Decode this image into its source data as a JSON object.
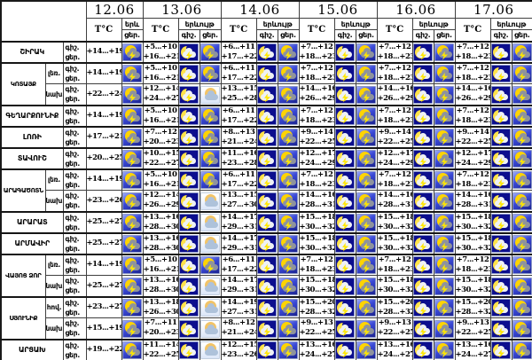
{
  "labels": {
    "temp": "T°C",
    "phenomenon": "երևույթ",
    "phenomenon_short": "երև",
    "night": "գիշ.",
    "day": "ցեր."
  },
  "days": [
    {
      "date": "12.06"
    },
    {
      "date": "13.06"
    },
    {
      "date": "14.06"
    },
    {
      "date": "15.06"
    },
    {
      "date": "16.06"
    },
    {
      "date": "17.06"
    }
  ],
  "icon_legend": {
    "sd": "sun-cloud-lightning (thunderstorm, day)",
    "sn": "moon-cloud-lightning (thunderstorm, night)",
    "cs": "sun-behind-cloud (partly cloudy, day)"
  },
  "colors": {
    "grid": "#3f3f3f",
    "storm_day_bg": "#2e3cc4",
    "storm_night_bg": "#0c0e8e",
    "partly_cloudy_bg": "#e8effa",
    "sun": "#ffd400",
    "moon": "#ffe24a",
    "bolt": "#ffe700",
    "cloud_gray": "#8e939d",
    "cloud_white": "#eef1f6",
    "cloud_blue": "#aec2da"
  },
  "rows": [
    {
      "region": "ՇԻՐԱԿ",
      "sub": null,
      "span": 1,
      "days": [
        {
          "night": "",
          "day": "+14...+19",
          "icons": [
            "sd"
          ]
        },
        {
          "night": "+5...+10",
          "day": "+16...+21",
          "icons": [
            "sn",
            "sd"
          ]
        },
        {
          "night": "+6...+11",
          "day": "+17...+22",
          "icons": [
            "sn",
            "sd"
          ]
        },
        {
          "night": "+7...+12",
          "day": "+18...+23",
          "icons": [
            "sn",
            "sd"
          ]
        },
        {
          "night": "+7...+12",
          "day": "+18...+23",
          "icons": [
            "sn",
            "sd"
          ]
        },
        {
          "night": "+7...+12",
          "day": "+18...+23",
          "icons": [
            "sn",
            "sd"
          ]
        }
      ]
    },
    {
      "region": "ԿՈՏԱՅՔ",
      "sub": "լեռ.",
      "span": 2,
      "days": [
        {
          "night": "",
          "day": "+14...+19",
          "icons": [
            "sd"
          ]
        },
        {
          "night": "+5...+10",
          "day": "+16...+21",
          "icons": [
            "sn",
            "sd"
          ]
        },
        {
          "night": "+6...+11",
          "day": "+17...+22",
          "icons": [
            "sn",
            "sd"
          ]
        },
        {
          "night": "+7...+12",
          "day": "+18...+23",
          "icons": [
            "sn",
            "sd"
          ]
        },
        {
          "night": "+7...+12",
          "day": "+18...+23",
          "icons": [
            "sn",
            "sd"
          ]
        },
        {
          "night": "+7...+12",
          "day": "+18...+23",
          "icons": [
            "sn",
            "sd"
          ]
        }
      ]
    },
    {
      "region": null,
      "sub": "նախ.",
      "span": 0,
      "days": [
        {
          "night": "",
          "day": "+22...+24",
          "icons": [
            "sd"
          ]
        },
        {
          "night": "+12...+14",
          "day": "+24...+27",
          "icons": [
            "sn",
            "cs"
          ]
        },
        {
          "night": "+13...+15",
          "day": "+25...+28",
          "icons": [
            "sn",
            "sd"
          ]
        },
        {
          "night": "+14...+16",
          "day": "+26...+29",
          "icons": [
            "sn",
            "sd"
          ]
        },
        {
          "night": "+14...+16",
          "day": "+26...+29",
          "icons": [
            "sn",
            "sd"
          ]
        },
        {
          "night": "+14...+16",
          "day": "+26...+29",
          "icons": [
            "sn",
            "sd"
          ]
        }
      ]
    },
    {
      "region": "ԳԵՂԱՐՔՈՒՆԻՔ",
      "sub": null,
      "span": 1,
      "days": [
        {
          "night": "",
          "day": "+14...+19",
          "icons": [
            "sd"
          ]
        },
        {
          "night": "+5...+10",
          "day": "+16...+21",
          "icons": [
            "sn",
            "sd"
          ]
        },
        {
          "night": "+6...+11",
          "day": "+17...+22",
          "icons": [
            "sn",
            "sd"
          ]
        },
        {
          "night": "+7...+12",
          "day": "+18...+23",
          "icons": [
            "sn",
            "sd"
          ]
        },
        {
          "night": "+7...+12",
          "day": "+18...+23",
          "icons": [
            "sn",
            "sd"
          ]
        },
        {
          "night": "+7...+12",
          "day": "+18...+23",
          "icons": [
            "sn",
            "sd"
          ]
        }
      ]
    },
    {
      "region": "ԼՈՌԻ",
      "sub": null,
      "span": 1,
      "days": [
        {
          "night": "",
          "day": "+17...+21",
          "icons": [
            "sd"
          ]
        },
        {
          "night": "+7...+12",
          "day": "+20...+23",
          "icons": [
            "sn",
            "sd"
          ]
        },
        {
          "night": "+8...+13",
          "day": "+21...+24",
          "icons": [
            "sn",
            "sd"
          ]
        },
        {
          "night": "+9...+14",
          "day": "+22...+25",
          "icons": [
            "sn",
            "sd"
          ]
        },
        {
          "night": "+9...+14",
          "day": "+22...+25",
          "icons": [
            "sn",
            "sd"
          ]
        },
        {
          "night": "+9...+14",
          "day": "+22...+25",
          "icons": [
            "sn",
            "sd"
          ]
        }
      ]
    },
    {
      "region": "ՏԱՎՈՒՇ",
      "sub": null,
      "span": 1,
      "days": [
        {
          "night": "",
          "day": "+20...+25",
          "icons": [
            "sd"
          ]
        },
        {
          "night": "+10...+15",
          "day": "+22...+27",
          "icons": [
            "sn",
            "sd"
          ]
        },
        {
          "night": "+11...+16",
          "day": "+23...+28",
          "icons": [
            "sn",
            "sd"
          ]
        },
        {
          "night": "+12...+17",
          "day": "+24...+29",
          "icons": [
            "sn",
            "sd"
          ]
        },
        {
          "night": "+12...+17",
          "day": "+24...+29",
          "icons": [
            "sn",
            "sd"
          ]
        },
        {
          "night": "+12...+17",
          "day": "+24...+29",
          "icons": [
            "sn",
            "sd"
          ]
        }
      ]
    },
    {
      "region": "ԱՐԱԳԱԾՈՏՆ",
      "sub": "լեռ.",
      "span": 2,
      "days": [
        {
          "night": "",
          "day": "+14...+19",
          "icons": [
            "sd"
          ]
        },
        {
          "night": "+5...+10",
          "day": "+16...+21",
          "icons": [
            "sn",
            "sd"
          ]
        },
        {
          "night": "+6...+11",
          "day": "+17...+22",
          "icons": [
            "sn",
            "sd"
          ]
        },
        {
          "night": "+7...+12",
          "day": "+18...+23",
          "icons": [
            "sn",
            "sd"
          ]
        },
        {
          "night": "+7...+12",
          "day": "+18...+23",
          "icons": [
            "sn",
            "sd"
          ]
        },
        {
          "night": "+7...+12",
          "day": "+18...+23",
          "icons": [
            "sn",
            "sd"
          ]
        }
      ]
    },
    {
      "region": null,
      "sub": "նախ.",
      "span": 0,
      "days": [
        {
          "night": "",
          "day": "+23...+26",
          "icons": [
            "sd"
          ]
        },
        {
          "night": "+12...+14",
          "day": "+26...+29",
          "icons": [
            "sn",
            "cs"
          ]
        },
        {
          "night": "+13...+15",
          "day": "+27...+30",
          "icons": [
            "sn",
            "sd"
          ]
        },
        {
          "night": "+14...+16",
          "day": "+28...+31",
          "icons": [
            "sn",
            "sd"
          ]
        },
        {
          "night": "+14...+16",
          "day": "+28...+31",
          "icons": [
            "sn",
            "sd"
          ]
        },
        {
          "night": "+14...+16",
          "day": "+28...+31",
          "icons": [
            "sn",
            "sd"
          ]
        }
      ]
    },
    {
      "region": "ԱՐԱՐԱՏ",
      "sub": null,
      "span": 1,
      "days": [
        {
          "night": "",
          "day": "+25...+27",
          "icons": [
            "sd"
          ]
        },
        {
          "night": "+13...+16",
          "day": "+28...+30",
          "icons": [
            "sn",
            "cs"
          ]
        },
        {
          "night": "+14...+17",
          "day": "+29...+31",
          "icons": [
            "sn",
            "sd"
          ]
        },
        {
          "night": "+15...+18",
          "day": "+30...+32",
          "icons": [
            "sn",
            "sd"
          ]
        },
        {
          "night": "+15...+18",
          "day": "+30...+32",
          "icons": [
            "sn",
            "sd"
          ]
        },
        {
          "night": "+15...+18",
          "day": "+30...+32",
          "icons": [
            "sn",
            "sd"
          ]
        }
      ]
    },
    {
      "region": "ԱՐՄԱՎԻՐ",
      "sub": null,
      "span": 1,
      "days": [
        {
          "night": "",
          "day": "+25...+27",
          "icons": [
            "sd"
          ]
        },
        {
          "night": "+13...+16",
          "day": "+28...+30",
          "icons": [
            "sn",
            "cs"
          ]
        },
        {
          "night": "+14...+17",
          "day": "+29...+31",
          "icons": [
            "sn",
            "sd"
          ]
        },
        {
          "night": "+15...+18",
          "day": "+30...+32",
          "icons": [
            "sn",
            "sd"
          ]
        },
        {
          "night": "+15...+18",
          "day": "+30...+32",
          "icons": [
            "sn",
            "sd"
          ]
        },
        {
          "night": "+15...+18",
          "day": "+30...+32",
          "icons": [
            "sn",
            "sd"
          ]
        }
      ]
    },
    {
      "region": "ՎԱՅՈՑ ՁՈՐ",
      "sub": "լեռ.",
      "span": 2,
      "days": [
        {
          "night": "",
          "day": "+14...+19",
          "icons": [
            "sd"
          ]
        },
        {
          "night": "+5...+10",
          "day": "+16...+21",
          "icons": [
            "sn",
            "sd"
          ]
        },
        {
          "night": "+6...+11",
          "day": "+17...+22",
          "icons": [
            "sn",
            "sd"
          ]
        },
        {
          "night": "+7...+12",
          "day": "+18...+23",
          "icons": [
            "sn",
            "sd"
          ]
        },
        {
          "night": "+7...+12",
          "day": "+18...+23",
          "icons": [
            "sn",
            "sd"
          ]
        },
        {
          "night": "+7...+12",
          "day": "+18...+23",
          "icons": [
            "sn",
            "sd"
          ]
        }
      ]
    },
    {
      "region": null,
      "sub": "նախ.",
      "span": 0,
      "days": [
        {
          "night": "",
          "day": "+25...+27",
          "icons": [
            "sd"
          ]
        },
        {
          "night": "+13...+16",
          "day": "+28...+30",
          "icons": [
            "sn",
            "cs"
          ]
        },
        {
          "night": "+14...+17",
          "day": "+29...+31",
          "icons": [
            "sn",
            "sd"
          ]
        },
        {
          "night": "+15...+18",
          "day": "+30...+32",
          "icons": [
            "sn",
            "sd"
          ]
        },
        {
          "night": "+15...+18",
          "day": "+30...+32",
          "icons": [
            "sn",
            "sd"
          ]
        },
        {
          "night": "+15...+18",
          "day": "+30...+32",
          "icons": [
            "sn",
            "sd"
          ]
        }
      ]
    },
    {
      "region": "ՍՅՈՒՆԻՔ",
      "sub": "հով.",
      "span": 2,
      "days": [
        {
          "night": "",
          "day": "+23...+27",
          "icons": [
            "sd"
          ]
        },
        {
          "night": "+13...+18",
          "day": "+26...+30",
          "icons": [
            "sn",
            "cs"
          ]
        },
        {
          "night": "+14...+19",
          "day": "+27...+31",
          "icons": [
            "sn",
            "sd"
          ]
        },
        {
          "night": "+15...+20",
          "day": "+28...+32",
          "icons": [
            "sn",
            "sd"
          ]
        },
        {
          "night": "+15...+20",
          "day": "+28...+32",
          "icons": [
            "sn",
            "sd"
          ]
        },
        {
          "night": "+15...+20",
          "day": "+28...+32",
          "icons": [
            "sn",
            "sd"
          ]
        }
      ]
    },
    {
      "region": null,
      "sub": "նախ.",
      "span": 0,
      "days": [
        {
          "night": "",
          "day": "+15...+19",
          "icons": [
            "sd"
          ]
        },
        {
          "night": "+7...+11",
          "day": "+20...+23",
          "icons": [
            "sn",
            "cs"
          ]
        },
        {
          "night": "+8...+12",
          "day": "+21...+24",
          "icons": [
            "sn",
            "sd"
          ]
        },
        {
          "night": "+9...+13",
          "day": "+22...+25",
          "icons": [
            "sn",
            "sd"
          ]
        },
        {
          "night": "+9...+13",
          "day": "+22...+25",
          "icons": [
            "sn",
            "sd"
          ]
        },
        {
          "night": "+9...+13",
          "day": "+22...+25",
          "icons": [
            "sn",
            "sd"
          ]
        }
      ]
    },
    {
      "region": "ԱՐՑԱԽ",
      "sub": null,
      "span": 1,
      "days": [
        {
          "night": "",
          "day": "+19...+22",
          "icons": [
            "sd"
          ]
        },
        {
          "night": "+11...+14",
          "day": "+22...+25",
          "icons": [
            "sn",
            "cs"
          ]
        },
        {
          "night": "+12...+15",
          "day": "+23...+26",
          "icons": [
            "sn",
            "sd"
          ]
        },
        {
          "night": "+13...+16",
          "day": "+24...+27",
          "icons": [
            "sn",
            "sd"
          ]
        },
        {
          "night": "+13...+16",
          "day": "+24...+27",
          "icons": [
            "sn",
            "sd"
          ]
        },
        {
          "night": "+13...+16",
          "day": "+24...+27",
          "icons": [
            "sn",
            "sd"
          ]
        }
      ]
    }
  ]
}
